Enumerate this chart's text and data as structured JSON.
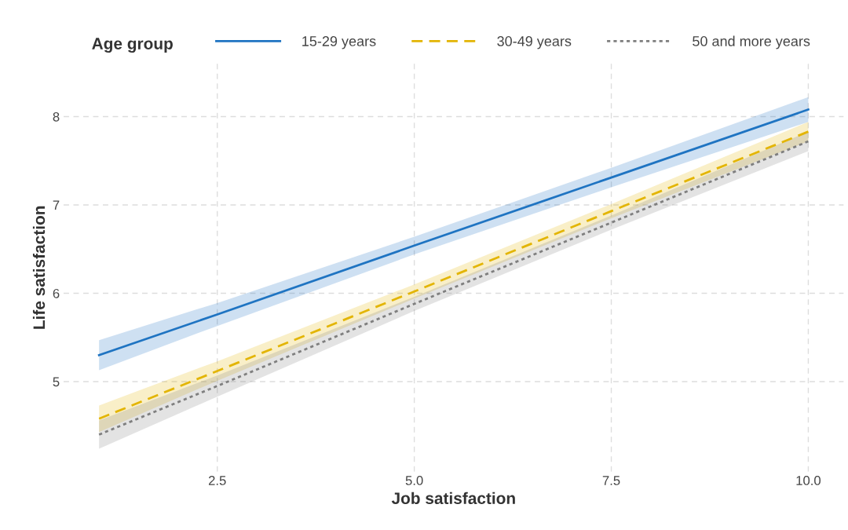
{
  "chart_data": {
    "type": "line",
    "xlabel": "Job satisfaction",
    "ylabel": "Life satisfaction",
    "legend_title": "Age group",
    "legend": "top",
    "grid": true,
    "xlim": [
      0.55,
      10.45
    ],
    "xticks": [
      {
        "value": 2.5,
        "label": "2.5"
      },
      {
        "value": 5,
        "label": "5.0"
      },
      {
        "value": 7.5,
        "label": "7.5"
      },
      {
        "value": 10,
        "label": "10.0"
      }
    ],
    "ylim": [
      3.98,
      8.6
    ],
    "yticks": [
      5,
      6,
      7,
      8
    ],
    "series": [
      {
        "name": "15-29 years",
        "color": "#1f74c2",
        "line_style": "solid",
        "x": [
          1,
          2.5,
          5,
          7.5,
          10
        ],
        "values": [
          5.3,
          5.76,
          6.54,
          7.31,
          8.08
        ],
        "lower": [
          5.13,
          5.63,
          6.44,
          7.2,
          7.94
        ],
        "upper": [
          5.47,
          5.89,
          6.64,
          7.42,
          8.22
        ]
      },
      {
        "name": "30-49 years",
        "color": "#e3b505",
        "line_style": "dashed",
        "x": [
          1,
          2.5,
          5,
          7.5,
          10
        ],
        "values": [
          4.58,
          5.12,
          6.02,
          6.93,
          7.83
        ],
        "lower": [
          4.43,
          5.01,
          5.94,
          6.85,
          7.72
        ],
        "upper": [
          4.73,
          5.23,
          6.1,
          7.01,
          7.94
        ]
      },
      {
        "name": "50 and more years",
        "color": "#7f7f7f",
        "line_style": "dotted",
        "x": [
          1,
          2.5,
          5,
          7.5,
          10
        ],
        "values": [
          4.4,
          4.95,
          5.88,
          6.8,
          7.72
        ],
        "lower": [
          4.24,
          4.83,
          5.8,
          6.72,
          7.61
        ],
        "upper": [
          4.56,
          5.07,
          5.96,
          6.88,
          7.83
        ]
      }
    ]
  }
}
